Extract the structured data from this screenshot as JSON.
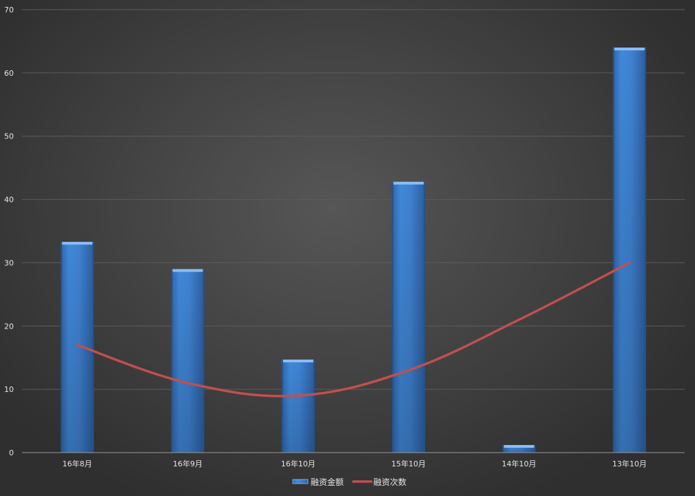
{
  "chart_data": {
    "type": "bar",
    "categories": [
      "16年8月",
      "16年9月",
      "16年10月",
      "15年10月",
      "14年10月",
      "13年10月"
    ],
    "series": [
      {
        "name": "融资金额",
        "type": "bar",
        "color": "#3f7fd0",
        "values": [
          33.3,
          29,
          14.7,
          42.8,
          1.2,
          64
        ]
      },
      {
        "name": "融资次数",
        "type": "line",
        "color": "#c0504d",
        "values": [
          17,
          11,
          9,
          13,
          21,
          30
        ]
      }
    ],
    "ylim": [
      0,
      70
    ],
    "yticks": [
      0,
      10,
      20,
      30,
      40,
      50,
      60,
      70
    ],
    "grid": true,
    "legend_position": "bottom"
  }
}
